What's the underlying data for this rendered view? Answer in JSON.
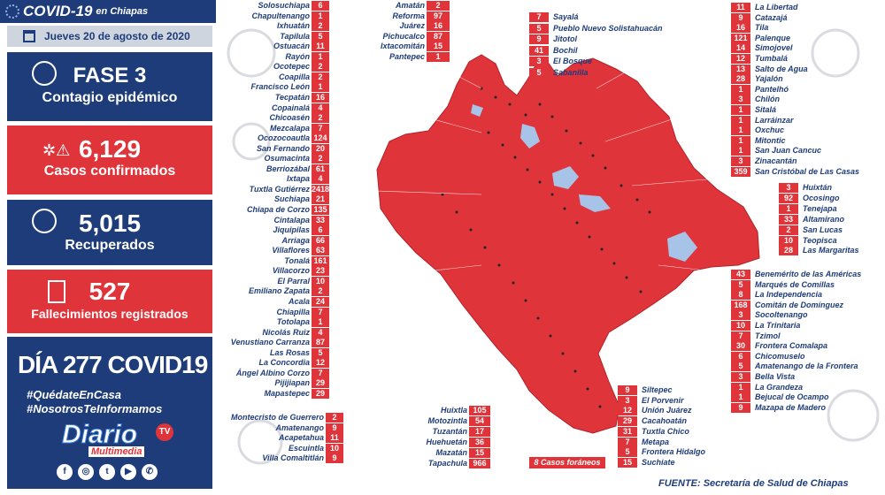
{
  "header": {
    "title": "COVID-19",
    "subtitle": "en Chiapas"
  },
  "date": "Jueves 20 de agosto de 2020",
  "stats": {
    "fase": "FASE 3",
    "fase_label": "Contagio epidémico",
    "confirmados": "6,129",
    "confirmados_label": "Casos confirmados",
    "recuperados": "5,015",
    "recuperados_label": "Recuperados",
    "fallecimientos": "527",
    "fallecimientos_label": "Fallecimientos registrados"
  },
  "day": {
    "title": "DÍA 277 COVID19",
    "hashtag1": "#QuédateEnCasa",
    "hashtag2": "#NosotrosTeInformamos"
  },
  "logo": {
    "name": "Diario",
    "sub": "Multimedia",
    "tv": "TV"
  },
  "colors": {
    "accent_red": "#e0343b",
    "navy": "#1e3c7a",
    "water": "#a7c3e8"
  },
  "source": "FUENTE: Secretaría de Salud de Chiapas",
  "foraneos": "8 Casos foráneos",
  "left_col": [
    [
      "Solosuchiapa",
      "6"
    ],
    [
      "Chapultenango",
      "1"
    ],
    [
      "Ixhuatán",
      "2"
    ],
    [
      "Tapilula",
      "5"
    ],
    [
      "Ostuacán",
      "11"
    ],
    [
      "Rayón",
      "1"
    ],
    [
      "Ocotepec",
      "2"
    ],
    [
      "Coapilla",
      "2"
    ],
    [
      "Francisco León",
      "1"
    ],
    [
      "Tecpatán",
      "16"
    ],
    [
      "Copainalá",
      "4"
    ],
    [
      "Chicoasén",
      "2"
    ],
    [
      "Mezcalapa",
      "7"
    ],
    [
      "Ocozocoautla",
      "124"
    ],
    [
      "San Fernando",
      "20"
    ],
    [
      "Osumacinta",
      "2"
    ],
    [
      "Berriozábal",
      "61"
    ],
    [
      "Ixtapa",
      "4"
    ],
    [
      "Tuxtla Gutiérrez",
      "2418"
    ],
    [
      "Suchiapa",
      "21"
    ],
    [
      "Chiapa de Corzo",
      "135"
    ],
    [
      "Cintalapa",
      "33"
    ],
    [
      "Jiquipilas",
      "6"
    ],
    [
      "Arriaga",
      "66"
    ],
    [
      "Villaflores",
      "63"
    ],
    [
      "Tonalá",
      "161"
    ],
    [
      "Villacorzo",
      "23"
    ],
    [
      "El Parral",
      "10"
    ],
    [
      "Emiliano Zapata",
      "2"
    ],
    [
      "Acala",
      "24"
    ],
    [
      "Chiapilla",
      "7"
    ],
    [
      "Totolapa",
      "1"
    ],
    [
      "Nicolás Ruiz",
      "4"
    ],
    [
      "Venustiano Carranza",
      "87"
    ],
    [
      "Las Rosas",
      "5"
    ],
    [
      "La Concordia",
      "12"
    ],
    [
      "Ángel Albino Corzo",
      "7"
    ],
    [
      "Pijijiapan",
      "29"
    ],
    [
      "Mapastepec",
      "29"
    ]
  ],
  "bottom_left": [
    [
      "Montecristo de Guerrero",
      "2"
    ],
    [
      "Amatenango",
      "9"
    ],
    [
      "Acapetahua",
      "11"
    ],
    [
      "Escuintla",
      "10"
    ],
    [
      "Villa Comaltitlán",
      "9"
    ]
  ],
  "top_center": [
    [
      "Amatán",
      "2"
    ],
    [
      "Reforma",
      "97"
    ],
    [
      "Juárez",
      "16"
    ],
    [
      "Pichucalco",
      "87"
    ],
    [
      "Ixtacomitán",
      "15"
    ],
    [
      "Pantepec",
      "1"
    ]
  ],
  "top_center2": [
    [
      "Sayalá",
      "7"
    ],
    [
      "Pueblo Nuevo Solistahuacán",
      "5"
    ],
    [
      "Jitotol",
      "9"
    ],
    [
      "Bochil",
      "41"
    ],
    [
      "El Bosque",
      "3"
    ],
    [
      "Sabanilla",
      "5"
    ]
  ],
  "right_col": [
    [
      "La Libertad",
      "11"
    ],
    [
      "Catazajá",
      "9"
    ],
    [
      "Tila",
      "16"
    ],
    [
      "Palenque",
      "121"
    ],
    [
      "Simojovel",
      "14"
    ],
    [
      "Tumbalá",
      "12"
    ],
    [
      "Salto de Agua",
      "13"
    ],
    [
      "Yajalón",
      "28"
    ],
    [
      "Pantelhó",
      "1"
    ],
    [
      "Chilón",
      "3"
    ],
    [
      "Sitalá",
      "1"
    ],
    [
      "Larráinzar",
      "1"
    ],
    [
      "Oxchuc",
      "1"
    ],
    [
      "Mitontic",
      "1"
    ],
    [
      "San Juan Cancuc",
      "1"
    ],
    [
      "Zinacantán",
      "3"
    ],
    [
      "San Cristóbal de Las Casas",
      "359"
    ]
  ],
  "right_col2": [
    [
      "Huixtán",
      "3"
    ],
    [
      "Ocosingo",
      "92"
    ],
    [
      "Tenejapa",
      "1"
    ],
    [
      "Altamirano",
      "33"
    ],
    [
      "San Lucas",
      "2"
    ],
    [
      "Teopisca",
      "10"
    ],
    [
      "Las Margaritas",
      "28"
    ]
  ],
  "right_col3": [
    [
      "Benemérito de las Américas",
      "43"
    ],
    [
      "Marqués de Comillas",
      "5"
    ],
    [
      "La Independencia",
      "8"
    ],
    [
      "Comitán de Domínguez",
      "168"
    ],
    [
      "Socoltenango",
      "3"
    ],
    [
      "La Trinitaria",
      "10"
    ],
    [
      "Tzimol",
      "7"
    ],
    [
      "Frontera Comalapa",
      "30"
    ],
    [
      "Chicomuselo",
      "6"
    ],
    [
      "Amatenango de la Frontera",
      "5"
    ],
    [
      "Bella Vista",
      "3"
    ],
    [
      "La Grandeza",
      "1"
    ],
    [
      "Bejucal de Ocampo",
      "1"
    ],
    [
      "Mazapa de Madero",
      "9"
    ]
  ],
  "bottom_center": [
    [
      "Huixtla",
      "105"
    ],
    [
      "Motozintla",
      "54"
    ],
    [
      "Tuzantán",
      "17"
    ],
    [
      "Huehuetán",
      "36"
    ],
    [
      "Mazatán",
      "15"
    ],
    [
      "Tapachula",
      "966"
    ]
  ],
  "bottom_center2": [
    [
      "Siltepec",
      "9"
    ],
    [
      "El Porvenir",
      "3"
    ],
    [
      "Unión Juárez",
      "12"
    ],
    [
      "Cacahoatán",
      "29"
    ],
    [
      "Tuxtla Chico",
      "31"
    ],
    [
      "Metapa",
      "7"
    ],
    [
      "Frontera Hidalgo",
      "5"
    ],
    [
      "Suchiate",
      "15"
    ]
  ]
}
